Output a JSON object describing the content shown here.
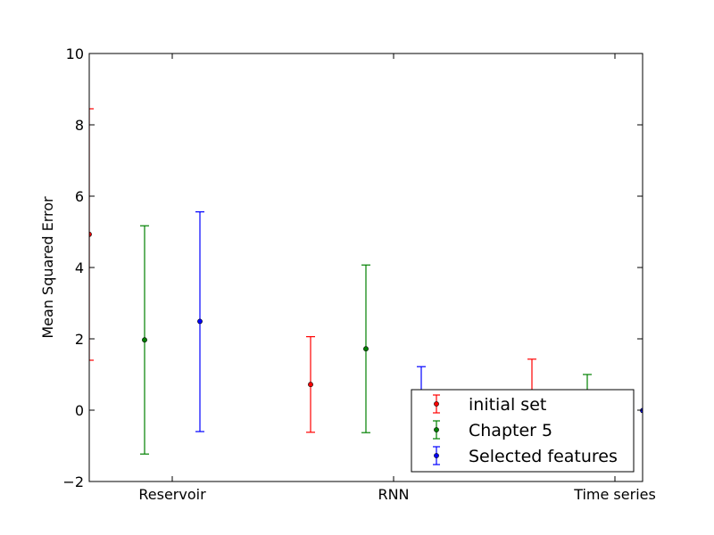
{
  "chart_data": {
    "type": "errorbar",
    "ylabel": "Mean Squared Error",
    "xlabel": "",
    "ylim": [
      -2,
      10
    ],
    "yticks": [
      -2,
      0,
      2,
      4,
      6,
      8,
      10
    ],
    "ytick_labels": [
      "−2",
      "0",
      "2",
      "4",
      "6",
      "8",
      "10"
    ],
    "x_positions": [
      0,
      1,
      2,
      3,
      4,
      5,
      6,
      7,
      8,
      9,
      10
    ],
    "xlim": [
      0,
      10
    ],
    "xticks": [
      1.5,
      5.5,
      9.5
    ],
    "categories": [
      "Reservoir",
      "RNN",
      "Time series"
    ],
    "grid": false,
    "legend_position": "lower-right",
    "series": [
      {
        "name": "initial set",
        "color": "#ff0000",
        "points": [
          {
            "x": 0,
            "y": 4.93,
            "lower": 1.4,
            "upper": 8.45
          },
          {
            "x": 4,
            "y": 0.72,
            "lower": -0.62,
            "upper": 2.06
          },
          {
            "x": 8,
            "y": 0.05,
            "lower": -1.3,
            "upper": 1.43
          }
        ]
      },
      {
        "name": "Chapter 5",
        "color": "#008000",
        "points": [
          {
            "x": 1,
            "y": 1.97,
            "lower": -1.23,
            "upper": 5.17
          },
          {
            "x": 5,
            "y": 1.72,
            "lower": -0.63,
            "upper": 4.07
          },
          {
            "x": 9,
            "y": -0.1,
            "lower": -1.2,
            "upper": 1.0
          }
        ]
      },
      {
        "name": "Selected features",
        "color": "#0000ff",
        "points": [
          {
            "x": 2,
            "y": 2.49,
            "lower": -0.6,
            "upper": 5.56
          },
          {
            "x": 6,
            "y": 0.2,
            "lower": -0.82,
            "upper": 1.22
          },
          {
            "x": 10,
            "y": -0.01,
            "lower": -0.01,
            "upper": -0.01
          }
        ]
      }
    ]
  }
}
